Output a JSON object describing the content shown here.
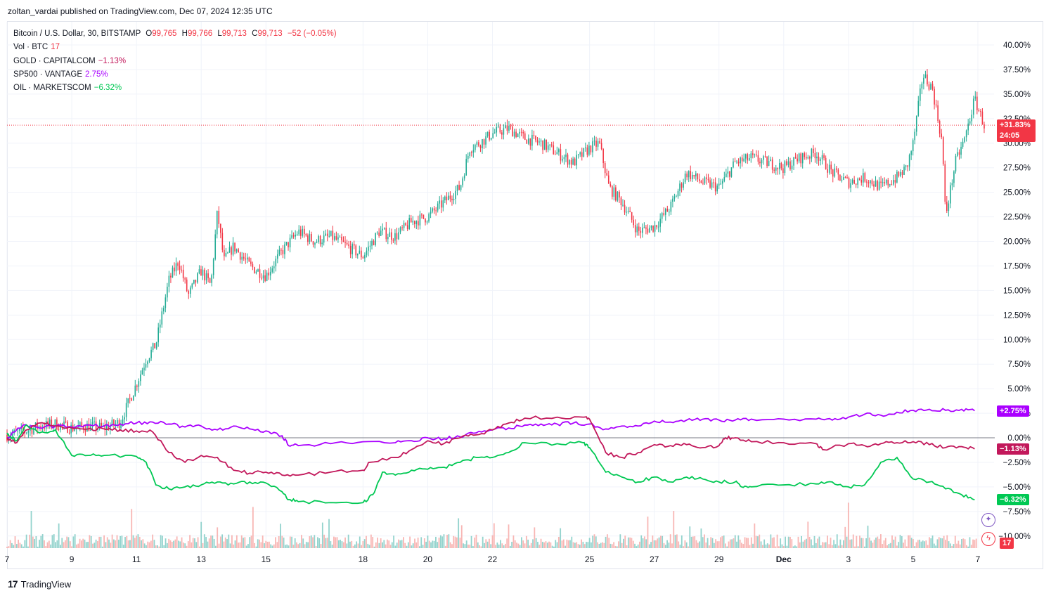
{
  "header": {
    "published": "zoltan_vardai published on TradingView.com, Dec 07, 2024 12:35 UTC"
  },
  "legend": {
    "main": {
      "symbol": "Bitcoin / U.S. Dollar, 30, BITSTAMP",
      "open_label": "O",
      "open": "99,765",
      "high_label": "H",
      "high": "99,766",
      "low_label": "L",
      "low": "99,713",
      "close_label": "C",
      "close": "99,713",
      "change": "−52 (−0.05%)"
    },
    "vol": {
      "label": "Vol · BTC",
      "value": "17"
    },
    "gold": {
      "label": "GOLD · CAPITALCOM",
      "value": "−1.13%"
    },
    "sp500": {
      "label": "SP500 · VANTAGE",
      "value": "2.75%"
    },
    "oil": {
      "label": "OIL · MARKETSCOM",
      "value": "−6.32%"
    }
  },
  "badges": {
    "btc_pct": "+31.83%",
    "btc_countdown": "24:05",
    "sp500": "+2.75%",
    "gold": "−1.13%",
    "oil": "−6.32%",
    "vol": "17"
  },
  "footer": {
    "brand": "TradingView"
  },
  "icons": {
    "add": "sparkle-plus-icon",
    "flash": "lightning-icon",
    "logo": "tradingview-logo-icon"
  },
  "colors": {
    "btc_up": "#22ab94",
    "btc_down": "#f23645",
    "gold": "#c2185b",
    "sp500": "#aa00ff",
    "oil": "#00c853",
    "vol_up": "#80cbc4",
    "vol_down": "#f7a9a7"
  },
  "chart_data": {
    "type": "line",
    "y_axis": {
      "unit": "percent",
      "range": [
        -11,
        43
      ],
      "ticks": [
        "40.00%",
        "37.50%",
        "35.00%",
        "32.50%",
        "30.00%",
        "27.50%",
        "25.00%",
        "22.50%",
        "20.00%",
        "17.50%",
        "15.00%",
        "12.50%",
        "10.00%",
        "7.50%",
        "5.00%",
        "2.50%",
        "0.00%",
        "−2.50%",
        "−5.00%",
        "−7.50%",
        "−10.00%"
      ],
      "tick_values": [
        40,
        37.5,
        35,
        32.5,
        30,
        27.5,
        25,
        22.5,
        20,
        17.5,
        15,
        12.5,
        10,
        7.5,
        5,
        2.5,
        0,
        -2.5,
        -5,
        -7.5,
        -10
      ]
    },
    "x_axis": {
      "range_days": [
        7.0,
        37.5
      ],
      "tick_labels": [
        "7",
        "9",
        "11",
        "13",
        "15",
        "18",
        "20",
        "22",
        "25",
        "27",
        "29",
        "Dec",
        "3",
        "5",
        "7"
      ],
      "tick_days": [
        7,
        9,
        11,
        13,
        15,
        18,
        20,
        22,
        25,
        27,
        29,
        31,
        33,
        35,
        37
      ]
    },
    "grid": true,
    "legend_position": "top-left",
    "btc_last_pct": 31.83,
    "series": [
      {
        "name": "Bitcoin / U.S. Dollar",
        "style": "candles",
        "x": [
          7.0,
          7.5,
          8.0,
          8.5,
          9.0,
          9.5,
          10.0,
          10.5,
          11.0,
          11.3,
          11.6,
          12.0,
          12.3,
          12.6,
          13.0,
          13.3,
          13.5,
          13.7,
          14.0,
          14.5,
          15.0,
          15.5,
          16.0,
          16.5,
          17.0,
          17.5,
          18.0,
          18.5,
          19.0,
          19.5,
          20.0,
          20.5,
          21.0,
          21.3,
          21.6,
          22.0,
          22.5,
          23.0,
          23.5,
          24.0,
          24.5,
          25.0,
          25.3,
          25.6,
          26.0,
          26.5,
          27.0,
          27.5,
          28.0,
          28.5,
          29.0,
          29.5,
          30.0,
          30.5,
          31.0,
          31.5,
          32.0,
          32.5,
          33.0,
          33.5,
          34.0,
          34.5,
          34.8,
          35.0,
          35.3,
          35.6,
          35.9,
          36.0,
          36.3,
          36.6,
          36.9,
          37.2
        ],
        "values": [
          0.3,
          0.6,
          1.2,
          1.4,
          1.0,
          1.2,
          1.0,
          1.6,
          5.5,
          8.0,
          9.5,
          16.0,
          18.0,
          14.5,
          17.0,
          15.5,
          23.0,
          18.0,
          19.5,
          17.5,
          16.5,
          19.0,
          21.0,
          20.0,
          20.5,
          19.5,
          18.5,
          21.0,
          20.5,
          22.0,
          22.5,
          24.0,
          25.5,
          29.5,
          30.0,
          31.0,
          31.5,
          30.5,
          30.0,
          29.0,
          28.0,
          29.5,
          30.0,
          25.5,
          24.0,
          21.0,
          21.5,
          23.5,
          27.0,
          26.0,
          25.5,
          28.0,
          28.5,
          28.0,
          27.5,
          28.5,
          29.0,
          27.0,
          26.0,
          26.5,
          25.5,
          26.5,
          27.5,
          30.0,
          37.0,
          35.5,
          30.0,
          22.5,
          28.0,
          30.5,
          34.5,
          31.8
        ]
      },
      {
        "name": "SP500 · VANTAGE",
        "x": [
          7.0,
          7.5,
          8.0,
          8.5,
          9.0,
          9.5,
          10.0,
          10.5,
          11.0,
          11.5,
          12.0,
          12.5,
          13.0,
          13.5,
          14.0,
          14.5,
          15.0,
          15.5,
          15.7,
          16.0,
          17.0,
          18.0,
          19.0,
          19.5,
          20.0,
          20.5,
          21.0,
          21.5,
          22.0,
          22.5,
          23.0,
          23.5,
          24.0,
          24.5,
          25.0,
          25.5,
          26.0,
          26.5,
          27.0,
          27.5,
          28.0,
          28.5,
          29.0,
          29.5,
          30.0,
          31.0,
          32.0,
          32.5,
          33.0,
          33.5,
          34.0,
          34.5,
          35.0,
          35.5,
          36.0,
          36.5,
          36.9
        ],
        "values": [
          0.0,
          1.3,
          1.0,
          1.2,
          1.1,
          1.3,
          1.2,
          1.4,
          1.5,
          1.6,
          1.4,
          1.1,
          1.2,
          0.8,
          1.2,
          0.9,
          0.7,
          0.2,
          -0.8,
          -0.8,
          -0.6,
          -0.4,
          -0.5,
          -0.3,
          0.0,
          -0.1,
          0.1,
          0.5,
          0.8,
          1.0,
          1.3,
          1.4,
          1.4,
          1.5,
          1.4,
          0.9,
          1.2,
          1.2,
          1.7,
          1.6,
          1.8,
          1.9,
          1.8,
          1.8,
          1.9,
          1.9,
          1.9,
          1.8,
          2.1,
          2.4,
          2.3,
          2.6,
          2.8,
          2.9,
          2.8,
          2.9,
          2.75
        ]
      },
      {
        "name": "GOLD · CAPITALCOM",
        "x": [
          7.0,
          7.3,
          7.6,
          8.0,
          8.5,
          9.0,
          9.5,
          10.0,
          10.5,
          11.0,
          11.5,
          12.0,
          12.5,
          13.0,
          13.5,
          14.0,
          14.5,
          15.0,
          15.5,
          16.0,
          17.0,
          18.0,
          18.2,
          19.0,
          19.5,
          20.0,
          20.5,
          21.0,
          21.5,
          22.0,
          22.5,
          23.0,
          24.0,
          24.8,
          25.0,
          25.5,
          26.0,
          26.5,
          27.0,
          27.5,
          28.0,
          28.5,
          29.0,
          29.2,
          29.5,
          30.0,
          31.0,
          32.0,
          32.2,
          33.0,
          33.5,
          34.0,
          34.5,
          35.0,
          35.5,
          36.0,
          36.5,
          36.9
        ],
        "values": [
          0.0,
          -0.5,
          0.8,
          1.5,
          1.2,
          1.0,
          0.9,
          0.9,
          0.8,
          0.7,
          0.6,
          -1.5,
          -2.5,
          -1.8,
          -2.0,
          -3.3,
          -3.6,
          -3.5,
          -3.8,
          -3.8,
          -3.5,
          -3.3,
          -2.5,
          -2.0,
          -1.2,
          -0.3,
          -0.6,
          0.0,
          0.3,
          0.8,
          1.5,
          2.0,
          2.1,
          2.1,
          1.9,
          -1.5,
          -2.0,
          -1.5,
          -0.7,
          -0.8,
          -0.7,
          -1.0,
          -0.8,
          0.0,
          0.0,
          -0.4,
          -0.5,
          -0.6,
          -1.2,
          -0.6,
          -0.8,
          -0.6,
          -0.5,
          -0.4,
          -0.7,
          -1.0,
          -0.9,
          -1.13
        ]
      },
      {
        "name": "OIL · MARKETSCOM",
        "x": [
          7.0,
          7.3,
          7.6,
          8.0,
          8.5,
          9.0,
          9.5,
          10.0,
          11.0,
          11.3,
          11.6,
          12.0,
          12.5,
          13.0,
          13.5,
          14.0,
          14.5,
          15.0,
          15.5,
          15.7,
          16.0,
          17.0,
          18.0,
          18.3,
          18.6,
          19.0,
          19.5,
          20.0,
          20.5,
          21.0,
          21.5,
          22.0,
          22.5,
          23.0,
          24.0,
          24.8,
          25.0,
          25.5,
          26.0,
          26.5,
          27.0,
          27.5,
          28.0,
          28.5,
          29.0,
          29.5,
          29.7,
          30.0,
          31.0,
          32.0,
          32.5,
          33.0,
          33.5,
          34.0,
          34.5,
          35.0,
          35.5,
          36.0,
          36.5,
          36.9
        ],
        "values": [
          0.5,
          -0.3,
          1.3,
          0.5,
          0.8,
          -1.8,
          -1.8,
          -1.8,
          -1.9,
          -2.5,
          -4.8,
          -5.2,
          -5.0,
          -4.8,
          -4.5,
          -4.7,
          -4.5,
          -4.6,
          -5.5,
          -6.3,
          -6.5,
          -6.6,
          -6.6,
          -5.8,
          -3.5,
          -3.8,
          -3.3,
          -3.2,
          -3.0,
          -2.5,
          -2.0,
          -2.0,
          -1.5,
          -0.5,
          -0.6,
          -0.5,
          -1.0,
          -3.5,
          -4.0,
          -4.5,
          -4.0,
          -4.5,
          -4.0,
          -4.2,
          -4.5,
          -4.5,
          -5.0,
          -5.0,
          -4.8,
          -4.7,
          -4.5,
          -5.0,
          -4.8,
          -2.5,
          -2.0,
          -4.2,
          -4.5,
          -5.2,
          -5.8,
          -6.32
        ]
      }
    ]
  }
}
